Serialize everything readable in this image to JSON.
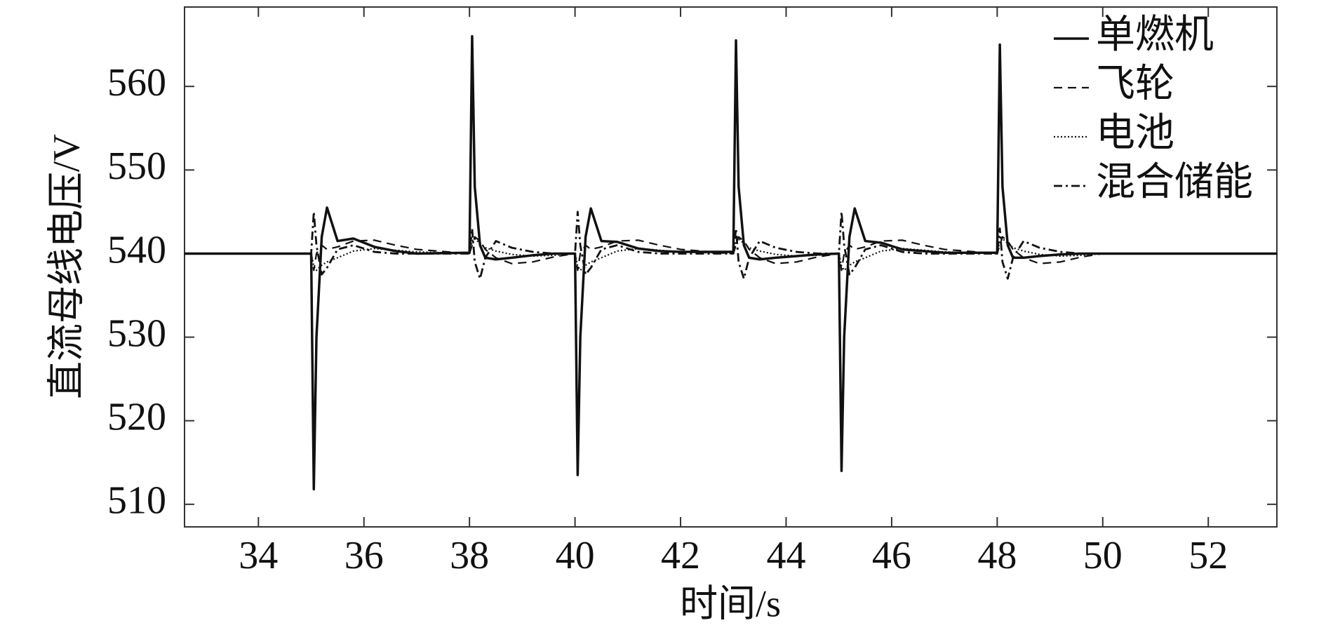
{
  "chart_data": {
    "type": "line",
    "x_label": "时间/s",
    "y_label": "直流母线电压/V",
    "x": [
      32.6,
      35,
      35.05,
      35.1,
      35.2,
      35.3,
      35.5,
      35.8,
      36.2,
      36.6,
      37.0,
      38,
      38.05,
      38.1,
      38.2,
      38.3,
      38.5,
      38.8,
      39.2,
      39.6,
      40,
      40.05,
      40.1,
      40.2,
      40.3,
      40.5,
      40.8,
      41.2,
      41.6,
      42.0,
      43,
      43.05,
      43.1,
      43.2,
      43.3,
      43.5,
      43.8,
      44.2,
      44.6,
      45,
      45.05,
      45.1,
      45.2,
      45.3,
      45.5,
      45.8,
      46.2,
      46.6,
      47.0,
      48,
      48.05,
      48.1,
      48.2,
      48.3,
      48.5,
      48.8,
      49.2,
      49.6,
      50.0,
      53.3
    ],
    "series": [
      {
        "name": "单燃机",
        "color": "#111111",
        "style": "solid",
        "values": [
          540,
          540,
          511.8,
          530,
          542,
          545.5,
          541.5,
          541.8,
          540.8,
          540.3,
          540.0,
          540.1,
          566,
          548,
          541,
          539.5,
          539.3,
          539.5,
          539.8,
          540.0,
          540.0,
          513.5,
          530,
          542,
          545.4,
          541.5,
          541.4,
          540.6,
          540.3,
          540.2,
          540.2,
          565.5,
          548,
          541,
          539.5,
          539.3,
          539.5,
          539.7,
          539.9,
          540,
          514,
          530,
          542,
          545.4,
          541.5,
          541.3,
          540.5,
          540.3,
          540.1,
          540.1,
          565,
          548,
          541,
          539.5,
          539.5,
          539.7,
          539.9,
          540.0,
          540.0,
          540
        ]
      },
      {
        "name": "飞轮",
        "color": "#111111",
        "style": "dashed",
        "values": [
          540,
          540,
          538,
          540,
          541,
          540.5,
          540.8,
          541.5,
          541.6,
          541,
          540.5,
          540,
          541,
          542,
          541.5,
          540.5,
          539.5,
          538.8,
          539,
          539.6,
          540,
          538,
          540,
          541,
          540.5,
          540.8,
          541.5,
          541.6,
          541,
          540.5,
          540,
          541,
          542,
          541.5,
          540.5,
          539.5,
          538.8,
          539,
          539.6,
          540,
          538,
          540,
          541,
          540.5,
          540.8,
          541.5,
          541.6,
          541,
          540.5,
          540,
          541,
          542,
          541.5,
          540.5,
          539.5,
          538.8,
          539,
          539.6,
          540,
          540
        ]
      },
      {
        "name": "电池",
        "color": "#111111",
        "style": "dotted",
        "values": [
          540,
          540,
          538.5,
          538,
          538.6,
          539,
          539.5,
          540.3,
          540.6,
          540.4,
          540.2,
          540,
          541.5,
          541.8,
          541.2,
          540.7,
          540.3,
          539.9,
          539.7,
          539.8,
          540,
          538.5,
          538,
          538.6,
          539,
          539.5,
          540.3,
          540.6,
          540.4,
          540.2,
          540,
          541.5,
          541.8,
          541.2,
          540.7,
          540.3,
          539.9,
          539.7,
          539.8,
          540,
          538.5,
          538,
          538.6,
          539,
          539.5,
          540.3,
          540.6,
          540.4,
          540.2,
          540,
          541.5,
          541.8,
          541.2,
          540.7,
          540.3,
          539.9,
          539.7,
          539.8,
          540,
          540
        ]
      },
      {
        "name": "混合储能",
        "color": "#111111",
        "style": "dashdot",
        "values": [
          540,
          540,
          545,
          541,
          537.5,
          538.3,
          540.5,
          541,
          540.2,
          540,
          540,
          540,
          543,
          539,
          537,
          539.5,
          541.5,
          540.7,
          540.2,
          540,
          540,
          545,
          541,
          537.5,
          538.3,
          540.5,
          541,
          540.2,
          540,
          540,
          540,
          543,
          539,
          537,
          539.5,
          541.5,
          540.7,
          540.2,
          540,
          540,
          545,
          541,
          537.5,
          538.3,
          540.5,
          541,
          540.2,
          540,
          540,
          540,
          543,
          539,
          537,
          539.5,
          541.5,
          540.7,
          540.2,
          540,
          540,
          540
        ]
      }
    ],
    "xlim": [
      32.6,
      53.3
    ],
    "ylim": [
      507.3,
      569.5
    ],
    "xticks": [
      34,
      36,
      38,
      40,
      42,
      44,
      46,
      48,
      50,
      52
    ],
    "yticks": [
      510,
      520,
      530,
      540,
      550,
      560
    ],
    "grid": false,
    "legend": "upper right"
  }
}
